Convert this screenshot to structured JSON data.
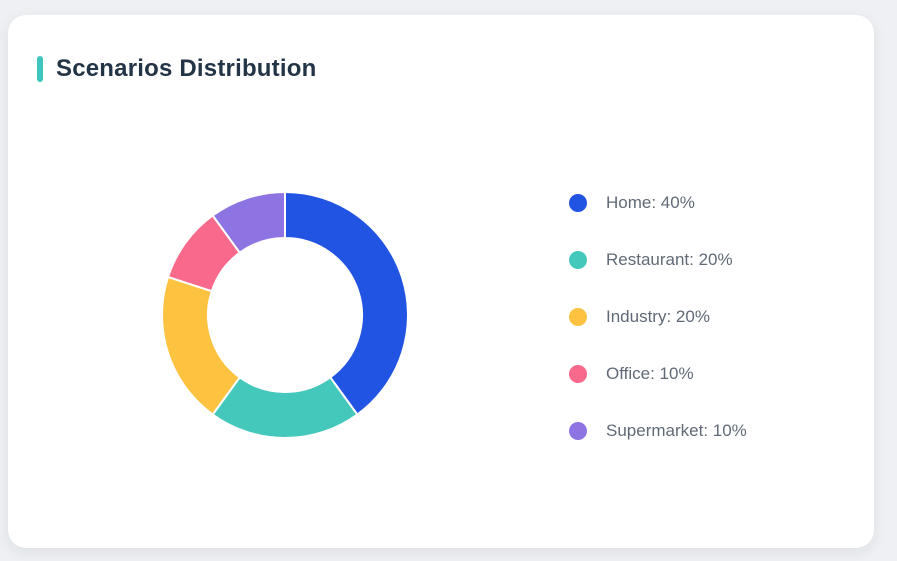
{
  "page": {
    "background_color": "#eef0f3",
    "card_background_color": "#ffffff"
  },
  "header": {
    "title": "Scenarios Distribution",
    "accent_color": "#3ec6c0",
    "title_color": "#243447"
  },
  "chart_data": {
    "type": "pie",
    "title": "Scenarios Distribution",
    "donut": true,
    "start_angle_deg": 0,
    "direction": "clockwise",
    "categories": [
      "Home",
      "Restaurant",
      "Industry",
      "Office",
      "Supermarket"
    ],
    "values": [
      40,
      20,
      20,
      10,
      10
    ],
    "unit": "%",
    "colors": [
      "#2254e3",
      "#45c8bc",
      "#fdc23f",
      "#f9698c",
      "#8e74e3"
    ],
    "slice_border_color": "#ffffff",
    "slice_border_width": 2,
    "legend_position": "right",
    "legend": [
      {
        "label": "Home: 40%",
        "color": "#2254e3"
      },
      {
        "label": "Restaurant: 20%",
        "color": "#45c8bc"
      },
      {
        "label": "Industry: 20%",
        "color": "#fdc23f"
      },
      {
        "label": "Office: 10%",
        "color": "#f9698c"
      },
      {
        "label": "Supermarket: 10%",
        "color": "#8e74e3"
      }
    ]
  }
}
